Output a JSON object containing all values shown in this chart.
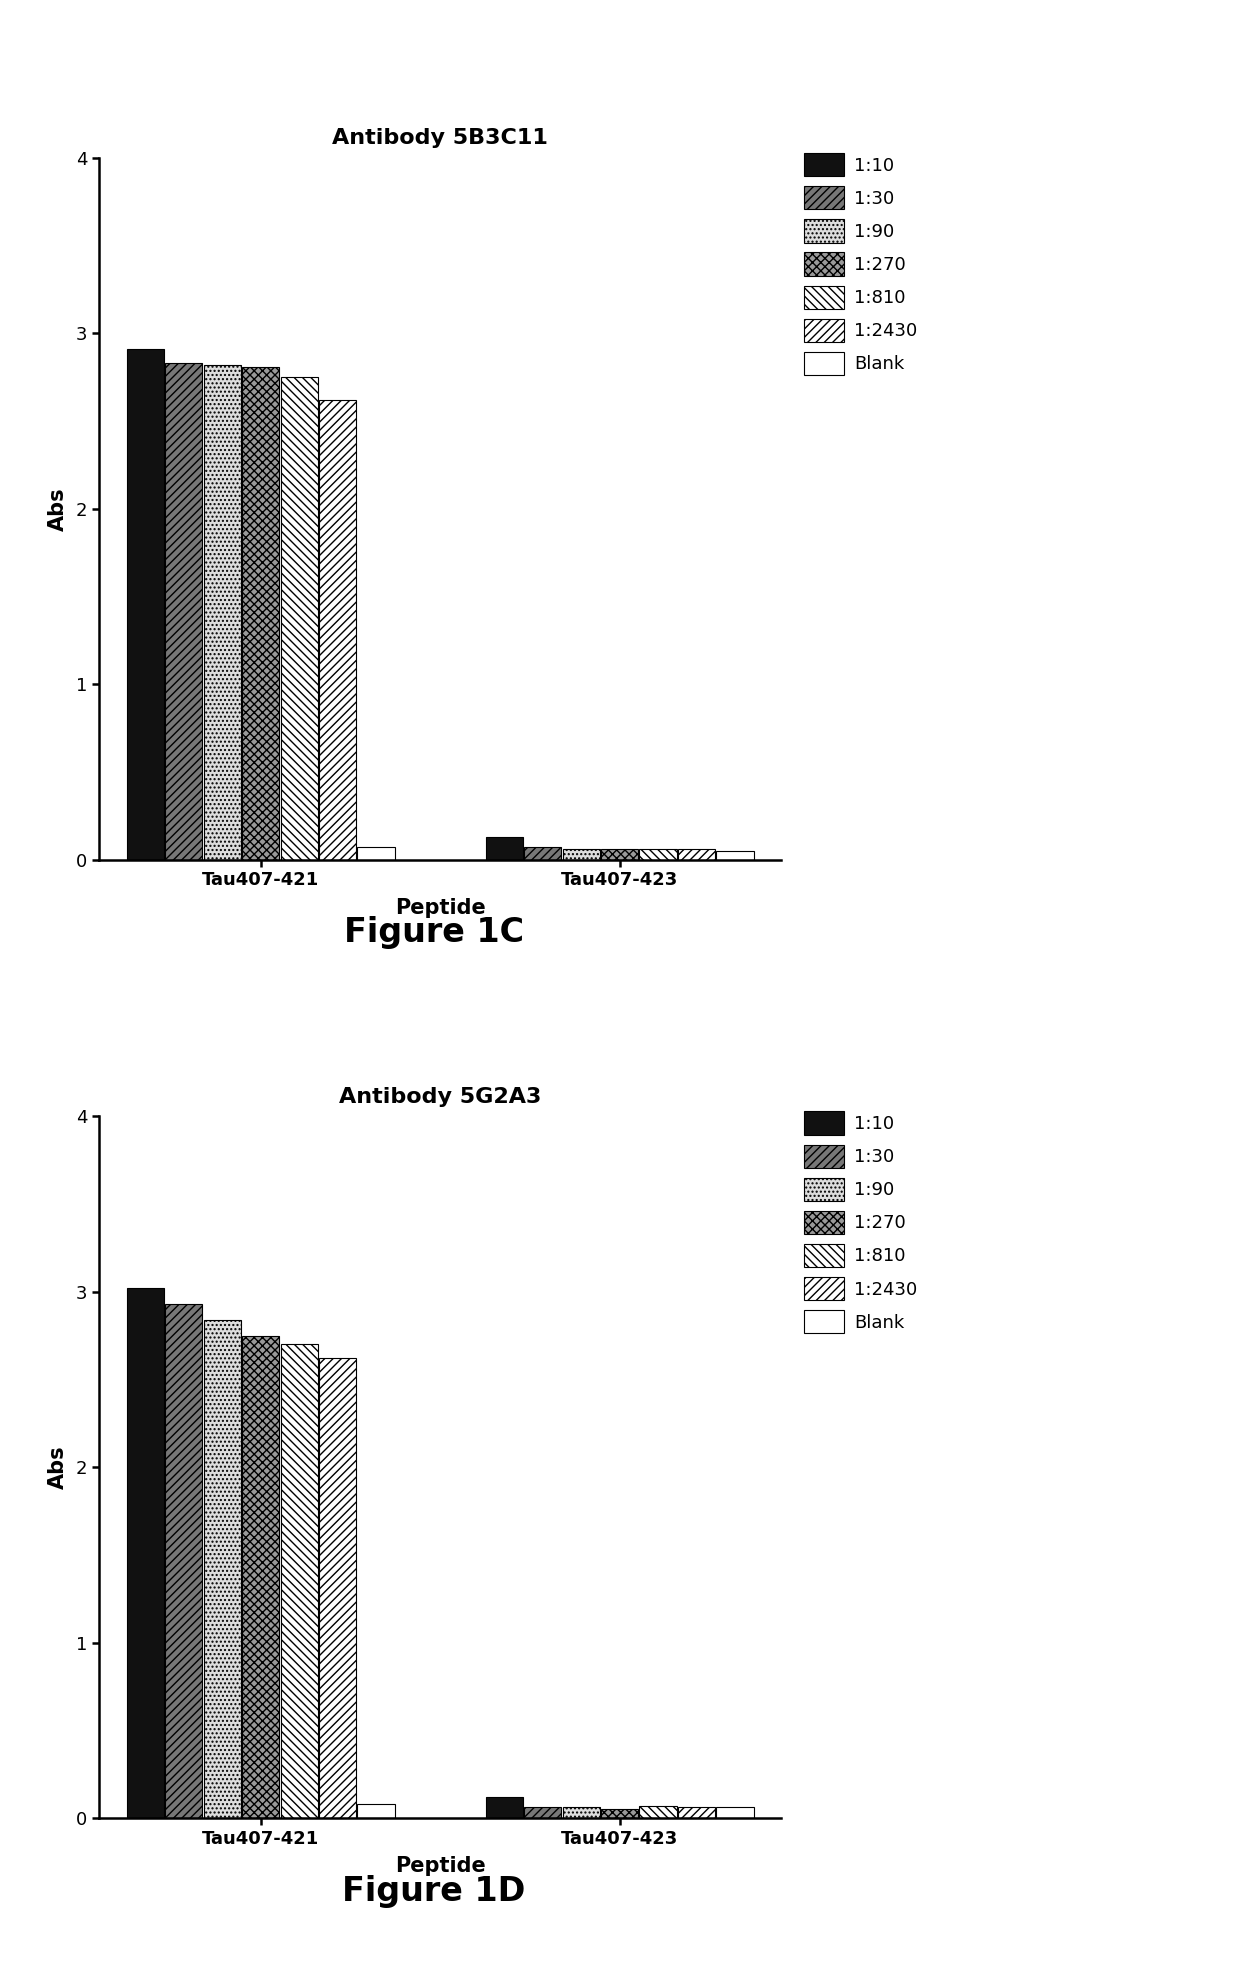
{
  "chart1": {
    "title": "Antibody 5B3C11",
    "figure_label": "Figure 1C",
    "groups": [
      "Tau407-421",
      "Tau407-423"
    ],
    "series_labels": [
      "1:10",
      "1:30",
      "1:90",
      "1:270",
      "1:810",
      "1:2430",
      "Blank"
    ],
    "values": {
      "Tau407-421": [
        2.91,
        2.83,
        2.82,
        2.81,
        2.75,
        2.62,
        0.07
      ],
      "Tau407-423": [
        0.13,
        0.07,
        0.06,
        0.06,
        0.06,
        0.06,
        0.05
      ]
    }
  },
  "chart2": {
    "title": "Antibody 5G2A3",
    "figure_label": "Figure 1D",
    "groups": [
      "Tau407-421",
      "Tau407-423"
    ],
    "series_labels": [
      "1:10",
      "1:30",
      "1:90",
      "1:270",
      "1:810",
      "1:2430",
      "Blank"
    ],
    "values": {
      "Tau407-421": [
        3.02,
        2.93,
        2.84,
        2.75,
        2.7,
        2.62,
        0.08
      ],
      "Tau407-423": [
        0.12,
        0.06,
        0.06,
        0.05,
        0.07,
        0.06,
        0.06
      ]
    }
  },
  "xlabel": "Peptide",
  "ylabel": "Abs",
  "ylim": [
    0,
    4
  ],
  "yticks": [
    0,
    1,
    2,
    3,
    4
  ],
  "background_color": "#ffffff",
  "title_fontsize": 16,
  "label_fontsize": 15,
  "tick_fontsize": 13,
  "legend_fontsize": 13,
  "figure_label_fontsize": 24,
  "bar_styles": [
    {
      "facecolor": "#111111",
      "hatch": "",
      "edgecolor": "#000000",
      "label": "1:10"
    },
    {
      "facecolor": "#777777",
      "hatch": "////",
      "edgecolor": "#000000",
      "label": "1:30"
    },
    {
      "facecolor": "#dddddd",
      "hatch": "....",
      "edgecolor": "#000000",
      "label": "1:90"
    },
    {
      "facecolor": "#999999",
      "hatch": "xxxx",
      "edgecolor": "#000000",
      "label": "1:270"
    },
    {
      "facecolor": "#ffffff",
      "hatch": "\\\\\\\\",
      "edgecolor": "#000000",
      "label": "1:810"
    },
    {
      "facecolor": "#ffffff",
      "hatch": "////",
      "edgecolor": "#000000",
      "label": "1:2430"
    },
    {
      "facecolor": "#ffffff",
      "hatch": "",
      "edgecolor": "#000000",
      "label": "Blank"
    }
  ]
}
